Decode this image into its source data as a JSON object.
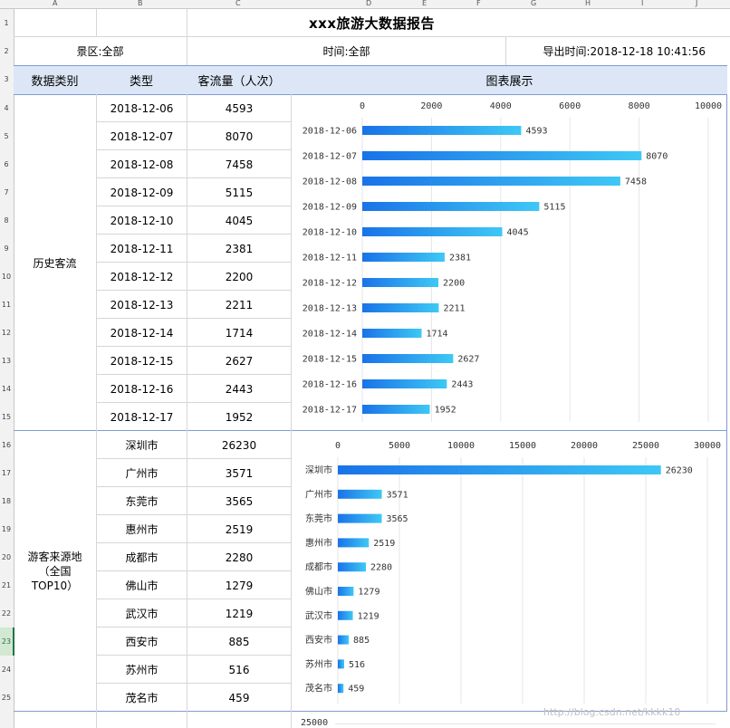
{
  "column_headers": [
    "A",
    "B",
    "C",
    "D",
    "E",
    "F",
    "G",
    "H",
    "I",
    "J"
  ],
  "row_headers": [
    "1",
    "2",
    "3",
    "4",
    "5",
    "6",
    "7",
    "8",
    "9",
    "10",
    "11",
    "12",
    "13",
    "14",
    "15",
    "16",
    "17",
    "18",
    "19",
    "20",
    "21",
    "22",
    "23",
    "24",
    "25"
  ],
  "selected_row": "23",
  "report": {
    "title": "xxx旅游大数据报告",
    "scenic_area": "景区:全部",
    "time": "时间:全部",
    "export_time": "导出时间:2018-12-18 10:41:56"
  },
  "table_header": {
    "category": "数据类别",
    "type": "类型",
    "traffic": "客流量（人次）",
    "chart": "图表展示"
  },
  "sections": {
    "history": {
      "label": "历史客流",
      "rows": [
        {
          "type": "2018-12-06",
          "value": "4593"
        },
        {
          "type": "2018-12-07",
          "value": "8070"
        },
        {
          "type": "2018-12-08",
          "value": "7458"
        },
        {
          "type": "2018-12-09",
          "value": "5115"
        },
        {
          "type": "2018-12-10",
          "value": "4045"
        },
        {
          "type": "2018-12-11",
          "value": "2381"
        },
        {
          "type": "2018-12-12",
          "value": "2200"
        },
        {
          "type": "2018-12-13",
          "value": "2211"
        },
        {
          "type": "2018-12-14",
          "value": "1714"
        },
        {
          "type": "2018-12-15",
          "value": "2627"
        },
        {
          "type": "2018-12-16",
          "value": "2443"
        },
        {
          "type": "2018-12-17",
          "value": "1952"
        }
      ]
    },
    "origin": {
      "label_line1": "游客来源地",
      "label_line2": "（全国",
      "label_line3": "TOP10）",
      "rows": [
        {
          "type": "深圳市",
          "value": "26230"
        },
        {
          "type": "广州市",
          "value": "3571"
        },
        {
          "type": "东莞市",
          "value": "3565"
        },
        {
          "type": "惠州市",
          "value": "2519"
        },
        {
          "type": "成都市",
          "value": "2280"
        },
        {
          "type": "佛山市",
          "value": "1279"
        },
        {
          "type": "武汉市",
          "value": "1219"
        },
        {
          "type": "西安市",
          "value": "885"
        },
        {
          "type": "苏州市",
          "value": "516"
        },
        {
          "type": "茂名市",
          "value": "459"
        }
      ]
    }
  },
  "chart_data": [
    {
      "type": "bar",
      "orientation": "horizontal",
      "categories": [
        "2018-12-06",
        "2018-12-07",
        "2018-12-08",
        "2018-12-09",
        "2018-12-10",
        "2018-12-11",
        "2018-12-12",
        "2018-12-13",
        "2018-12-14",
        "2018-12-15",
        "2018-12-16",
        "2018-12-17"
      ],
      "values": [
        4593,
        8070,
        7458,
        5115,
        4045,
        2381,
        2200,
        2211,
        1714,
        2627,
        2443,
        1952
      ],
      "xlim": [
        0,
        10000
      ],
      "xticks": [
        0,
        2000,
        4000,
        6000,
        8000,
        10000
      ],
      "axis_position": "top",
      "grid": true,
      "data_labels": true,
      "colors": {
        "bar_start": "#1a73e8",
        "bar_end": "#3ec8f5",
        "grid": "#e6e6e6"
      }
    },
    {
      "type": "bar",
      "orientation": "horizontal",
      "categories": [
        "深圳市",
        "广州市",
        "东莞市",
        "惠州市",
        "成都市",
        "佛山市",
        "武汉市",
        "西安市",
        "苏州市",
        "茂名市"
      ],
      "values": [
        26230,
        3571,
        3565,
        2519,
        2280,
        1279,
        1219,
        885,
        516,
        459
      ],
      "xlim": [
        0,
        30000
      ],
      "xticks": [
        0,
        5000,
        10000,
        15000,
        20000,
        25000,
        30000
      ],
      "axis_position": "top",
      "grid": true,
      "data_labels": true,
      "colors": {
        "bar_start": "#1a73e8",
        "bar_end": "#3ec8f5",
        "grid": "#e6e6e6"
      }
    },
    {
      "type": "bar",
      "orientation": "vertical",
      "partial": true,
      "visible_ticks": [
        "25000"
      ]
    }
  ],
  "watermark": "http://blog.csdn.net/kkkk10"
}
